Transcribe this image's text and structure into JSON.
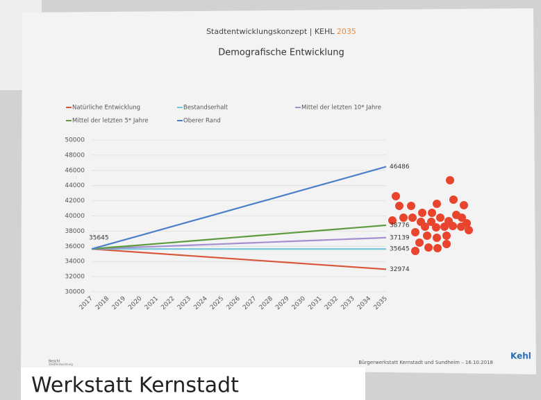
{
  "poster": {
    "header": "Stadtentwicklungskonzept | KEHL",
    "header_year": "2035",
    "footer": "Bürgerwerkstatt Kernstadt und Sundheim – 16.10.2018",
    "logo": "Kehl",
    "office": "Reschl",
    "office_sub": "Stadtentwicklung",
    "caption": "Werkstatt Kernstadt"
  },
  "chart_data": {
    "type": "line",
    "title": "Demografische Entwicklung",
    "categories": [
      "2017",
      "2018",
      "2019",
      "2020",
      "2021",
      "2022",
      "2023",
      "2024",
      "2025",
      "2026",
      "2027",
      "2028",
      "2029",
      "2030",
      "2031",
      "2032",
      "2033",
      "2034",
      "2035"
    ],
    "ylim": [
      30000,
      50000
    ],
    "yticks": [
      30000,
      32000,
      34000,
      36000,
      38000,
      40000,
      42000,
      44000,
      46000,
      48000,
      50000
    ],
    "grid": true,
    "series": [
      {
        "name": "Natürliche Entwicklung",
        "color": "#d8553a",
        "values": [
          35645,
          35497,
          35348,
          35200,
          35051,
          34903,
          34755,
          34606,
          34458,
          34310,
          34161,
          34013,
          33864,
          33716,
          33568,
          33419,
          33271,
          33122,
          32974
        ]
      },
      {
        "name": "Bestandserhalt",
        "color": "#72c6dc",
        "values": [
          35645,
          35645,
          35645,
          35645,
          35645,
          35645,
          35645,
          35645,
          35645,
          35645,
          35645,
          35645,
          35645,
          35645,
          35645,
          35645,
          35645,
          35645,
          35645
        ]
      },
      {
        "name": "Mittel der letzten 10* Jahre",
        "color": "#a48fd0",
        "values": [
          35645,
          35728,
          35811,
          35894,
          35977,
          36060,
          36143,
          36226,
          36309,
          36392,
          36475,
          36558,
          36641,
          36724,
          36807,
          36890,
          36973,
          37056,
          37139
        ]
      },
      {
        "name": "Mittel der letzten 5* Jahre",
        "color": "#5c9a3e",
        "values": [
          35645,
          35819,
          35993,
          36167,
          36341,
          36515,
          36689,
          36863,
          37037,
          37211,
          37384,
          37558,
          37732,
          37906,
          38080,
          38254,
          38428,
          38602,
          38776
        ]
      },
      {
        "name": "Oberer Rand",
        "color": "#4a7fca",
        "values": [
          35645,
          36247,
          36850,
          37452,
          38054,
          38656,
          39259,
          39861,
          40463,
          41066,
          41668,
          42270,
          42872,
          43475,
          44077,
          44679,
          45281,
          45884,
          46486
        ]
      }
    ]
  }
}
